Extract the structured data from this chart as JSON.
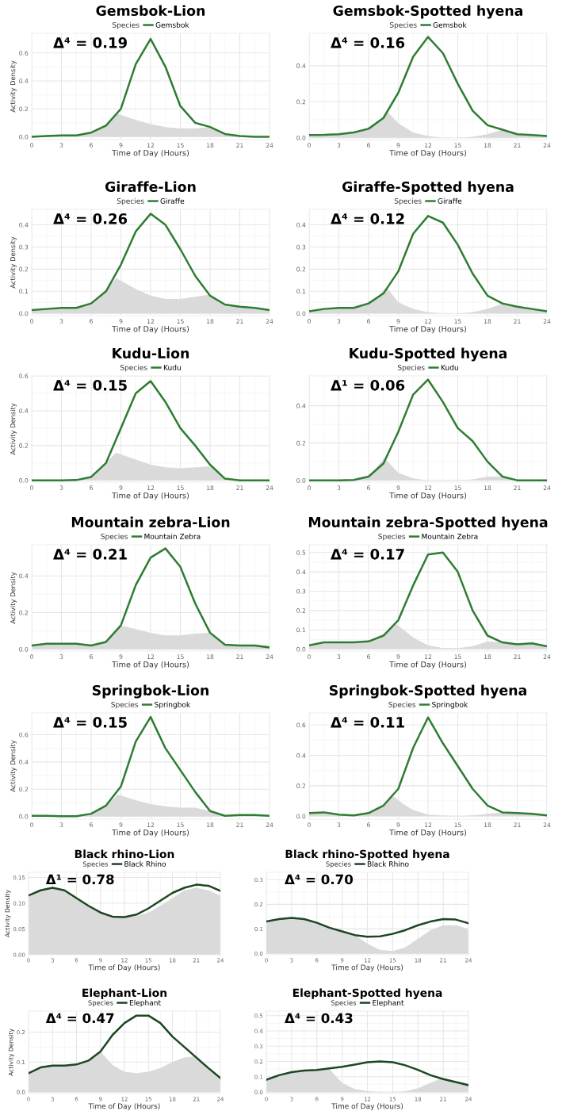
{
  "chart_data": [
    {
      "type": "line",
      "title": "Gemsbok-Lion",
      "legend_title": "Species",
      "legend": "top",
      "xlabel": "Time of Day (Hours)",
      "ylabel": "Activity Density",
      "annotations": [
        "Δ⁴ = 0.19"
      ],
      "grid": true,
      "xlim": [
        0,
        24
      ],
      "xticks": [
        0,
        3,
        6,
        9,
        12,
        15,
        18,
        21,
        24
      ],
      "ylim": [
        -0.02,
        0.74
      ],
      "yticks": [
        {
          "value": 0,
          "label": "0.0"
        },
        {
          "value": 0.2,
          "label": "0.2"
        },
        {
          "value": 0.4,
          "label": "0.4"
        },
        {
          "value": 0.6,
          "label": "0.6"
        }
      ],
      "x": [
        0,
        1.5,
        3,
        4.5,
        6,
        7.5,
        9,
        10.5,
        12,
        13.5,
        15,
        16.5,
        18,
        19.5,
        21,
        22.5,
        24
      ],
      "series": [
        {
          "type": "area",
          "color": "#dadada",
          "x": [
            0,
            1.5,
            3,
            4.5,
            6,
            7.5,
            8.7,
            10.5,
            12,
            13.5,
            15,
            16.5,
            18,
            19.5,
            21,
            22.5,
            24
          ],
          "values": [
            0,
            0.005,
            0.01,
            0.01,
            0.03,
            0.09,
            0.165,
            0.12,
            0.09,
            0.07,
            0.06,
            0.06,
            0.07,
            0.02,
            0.005,
            0,
            0
          ]
        },
        {
          "name": "Gemsbok",
          "color": "#2e7d32",
          "values": [
            0,
            0.005,
            0.01,
            0.01,
            0.03,
            0.08,
            0.2,
            0.52,
            0.7,
            0.5,
            0.22,
            0.1,
            0.07,
            0.02,
            0.005,
            0,
            0
          ]
        }
      ]
    },
    {
      "type": "line",
      "title": "Gemsbok-Spotted hyena",
      "legend_title": "Species",
      "legend": "top",
      "xlabel": "Time of Day (Hours)",
      "annotations": [
        "Δ⁴ = 0.16"
      ],
      "grid": true,
      "xlim": [
        0,
        24
      ],
      "xticks": [
        0,
        3,
        6,
        9,
        12,
        15,
        18,
        21,
        24
      ],
      "ylim": [
        -0.01,
        0.58
      ],
      "yticks": [
        {
          "value": 0,
          "label": "0.0"
        },
        {
          "value": 0.2,
          "label": "0.2"
        },
        {
          "value": 0.4,
          "label": "0.4"
        }
      ],
      "x": [
        0,
        1.5,
        3,
        4.5,
        6,
        7.5,
        9,
        10.5,
        12,
        13.5,
        15,
        16.5,
        18,
        19.5,
        21,
        22.5,
        24
      ],
      "series": [
        {
          "type": "area",
          "color": "#dadada",
          "x": [
            0,
            1.5,
            3,
            4.5,
            6,
            7,
            8,
            9,
            10.5,
            12,
            13.5,
            15,
            16.5,
            18,
            19.5,
            21,
            22.5,
            24
          ],
          "values": [
            0.015,
            0.016,
            0.02,
            0.03,
            0.05,
            0.09,
            0.14,
            0.08,
            0.03,
            0.01,
            0,
            0,
            0.005,
            0.02,
            0.045,
            0.02,
            0.015,
            0.01
          ]
        },
        {
          "name": "Gemsbok",
          "color": "#2e7d32",
          "values": [
            0.015,
            0.016,
            0.02,
            0.03,
            0.05,
            0.11,
            0.25,
            0.45,
            0.56,
            0.47,
            0.3,
            0.15,
            0.07,
            0.045,
            0.02,
            0.015,
            0.01
          ]
        }
      ]
    },
    {
      "type": "line",
      "title": "Giraffe-Lion",
      "legend_title": "Species",
      "legend": "top",
      "xlabel": "Time of Day (Hours)",
      "ylabel": "Activity Density",
      "annotations": [
        "Δ⁴ = 0.26"
      ],
      "grid": true,
      "xlim": [
        0,
        24
      ],
      "xticks": [
        0,
        3,
        6,
        9,
        12,
        15,
        18,
        21,
        24
      ],
      "ylim": [
        -0.01,
        0.47
      ],
      "yticks": [
        {
          "value": 0,
          "label": "0.0"
        },
        {
          "value": 0.1,
          "label": "0.1"
        },
        {
          "value": 0.2,
          "label": "0.2"
        },
        {
          "value": 0.3,
          "label": "0.3"
        },
        {
          "value": 0.4,
          "label": "0.4"
        }
      ],
      "x": [
        0,
        1.5,
        3,
        4.5,
        6,
        7.5,
        9,
        10.5,
        12,
        13.5,
        15,
        16.5,
        18,
        19.5,
        21,
        22.5,
        24
      ],
      "series": [
        {
          "type": "area",
          "color": "#dadada",
          "x": [
            0,
            1.5,
            3,
            4.5,
            6,
            7.5,
            8.5,
            10.5,
            12,
            13.5,
            15,
            16.5,
            18,
            19.5,
            21,
            22.5,
            24
          ],
          "values": [
            0.015,
            0.02,
            0.025,
            0.025,
            0.045,
            0.1,
            0.16,
            0.11,
            0.08,
            0.065,
            0.065,
            0.075,
            0.085,
            0.04,
            0.03,
            0.025,
            0.015
          ]
        },
        {
          "name": "Giraffe",
          "color": "#2e7d32",
          "values": [
            0.015,
            0.02,
            0.025,
            0.025,
            0.045,
            0.1,
            0.22,
            0.37,
            0.45,
            0.4,
            0.29,
            0.17,
            0.08,
            0.04,
            0.03,
            0.025,
            0.015
          ]
        }
      ]
    },
    {
      "type": "line",
      "title": "Giraffe-Spotted hyena",
      "legend_title": "Species",
      "legend": "top",
      "xlabel": "Time of Day (Hours)",
      "annotations": [
        "Δ⁴ = 0.12"
      ],
      "grid": true,
      "xlim": [
        0,
        24
      ],
      "xticks": [
        0,
        3,
        6,
        9,
        12,
        15,
        18,
        21,
        24
      ],
      "ylim": [
        -0.01,
        0.47
      ],
      "yticks": [
        {
          "value": 0,
          "label": "0.0"
        },
        {
          "value": 0.1,
          "label": "0.1"
        },
        {
          "value": 0.2,
          "label": "0.2"
        },
        {
          "value": 0.3,
          "label": "0.3"
        },
        {
          "value": 0.4,
          "label": "0.4"
        }
      ],
      "x": [
        0,
        1.5,
        3,
        4.5,
        6,
        7.5,
        9,
        10.5,
        12,
        13.5,
        15,
        16.5,
        18,
        19.5,
        21,
        22.5,
        24
      ],
      "series": [
        {
          "type": "area",
          "color": "#dadada",
          "x": [
            0,
            1.5,
            3,
            4.5,
            6,
            7,
            7.8,
            9,
            10.5,
            12,
            13.5,
            15,
            16.5,
            18,
            19.5,
            21,
            22.5,
            24
          ],
          "values": [
            0.01,
            0.02,
            0.025,
            0.025,
            0.045,
            0.08,
            0.12,
            0.05,
            0.02,
            0.005,
            0,
            0,
            0.005,
            0.02,
            0.045,
            0.03,
            0.02,
            0.01
          ]
        },
        {
          "name": "Giraffe",
          "color": "#2e7d32",
          "values": [
            0.01,
            0.02,
            0.025,
            0.025,
            0.045,
            0.09,
            0.19,
            0.36,
            0.44,
            0.41,
            0.31,
            0.18,
            0.08,
            0.045,
            0.03,
            0.02,
            0.01
          ]
        }
      ]
    },
    {
      "type": "line",
      "title": "Kudu-Lion",
      "legend_title": "Species",
      "legend": "top",
      "xlabel": "Time of Day (Hours)",
      "ylabel": "Activity Density",
      "annotations": [
        "Δ⁴ = 0.15"
      ],
      "grid": true,
      "xlim": [
        0,
        24
      ],
      "xticks": [
        0,
        3,
        6,
        9,
        12,
        15,
        18,
        21,
        24
      ],
      "ylim": [
        -0.01,
        0.6
      ],
      "yticks": [
        {
          "value": 0,
          "label": "0.0"
        },
        {
          "value": 0.2,
          "label": "0.2"
        },
        {
          "value": 0.4,
          "label": "0.4"
        },
        {
          "value": 0.6,
          "label": "0.6"
        }
      ],
      "x": [
        0,
        1.5,
        3,
        4.5,
        6,
        7.5,
        9,
        10.5,
        12,
        13.5,
        15,
        16.5,
        18,
        19.5,
        21,
        22.5,
        24
      ],
      "series": [
        {
          "type": "area",
          "color": "#dadada",
          "x": [
            0,
            1.5,
            3,
            4.5,
            6,
            7.5,
            8.5,
            10.5,
            12,
            13.5,
            15,
            16.5,
            18,
            19.5,
            21,
            22.5,
            24
          ],
          "values": [
            0,
            0,
            0,
            0.002,
            0.02,
            0.1,
            0.16,
            0.12,
            0.09,
            0.075,
            0.07,
            0.075,
            0.08,
            0.01,
            0,
            0,
            0
          ]
        },
        {
          "name": "Kudu",
          "color": "#2e7d32",
          "values": [
            0,
            0,
            0,
            0.002,
            0.02,
            0.1,
            0.3,
            0.5,
            0.57,
            0.45,
            0.3,
            0.2,
            0.09,
            0.01,
            0,
            0,
            0
          ]
        }
      ]
    },
    {
      "type": "line",
      "title": "Kudu-Spotted hyena",
      "legend_title": "Species",
      "legend": "top",
      "xlabel": "Time of Day (Hours)",
      "annotations": [
        "Δ¹ = 0.06"
      ],
      "grid": true,
      "xlim": [
        0,
        24
      ],
      "xticks": [
        0,
        3,
        6,
        9,
        12,
        15,
        18,
        21,
        24
      ],
      "ylim": [
        -0.01,
        0.56
      ],
      "yticks": [
        {
          "value": 0,
          "label": "0.0"
        },
        {
          "value": 0.2,
          "label": "0.2"
        },
        {
          "value": 0.4,
          "label": "0.4"
        }
      ],
      "x": [
        0,
        1.5,
        3,
        4.5,
        6,
        7.5,
        9,
        10.5,
        12,
        13.5,
        15,
        16.5,
        18,
        19.5,
        21,
        22.5,
        24
      ],
      "series": [
        {
          "type": "area",
          "color": "#dadada",
          "x": [
            0,
            1.5,
            3,
            4.5,
            6,
            7.6,
            9,
            10.5,
            12,
            13.5,
            15,
            16.5,
            18,
            19.5,
            21,
            22.5,
            24
          ],
          "values": [
            0,
            0,
            0,
            0.002,
            0.02,
            0.12,
            0.04,
            0.01,
            0,
            0,
            0,
            0.005,
            0.02,
            0.02,
            0,
            0,
            0
          ]
        },
        {
          "name": "Kudu",
          "color": "#2e7d32",
          "values": [
            0,
            0,
            0,
            0.002,
            0.02,
            0.09,
            0.26,
            0.46,
            0.54,
            0.42,
            0.28,
            0.21,
            0.1,
            0.02,
            0,
            0,
            0
          ]
        }
      ]
    },
    {
      "type": "line",
      "title": "Mountain zebra-Lion",
      "legend_title": "Species",
      "legend": "top",
      "xlabel": "Time of Day (Hours)",
      "ylabel": "Activity Density",
      "annotations": [
        "Δ⁴ = 0.21"
      ],
      "grid": true,
      "xlim": [
        0,
        24
      ],
      "xticks": [
        0,
        3,
        6,
        9,
        12,
        15,
        18,
        21,
        24
      ],
      "ylim": [
        -0.01,
        0.57
      ],
      "yticks": [
        {
          "value": 0,
          "label": "0.0"
        },
        {
          "value": 0.2,
          "label": "0.2"
        },
        {
          "value": 0.4,
          "label": "0.4"
        }
      ],
      "x": [
        0,
        1.5,
        3,
        4.5,
        6,
        7.5,
        9,
        10.5,
        12,
        13.5,
        15,
        16.5,
        18,
        19.5,
        21,
        22.5,
        24
      ],
      "series": [
        {
          "type": "area",
          "color": "#dadada",
          "values": [
            0.02,
            0.03,
            0.03,
            0.03,
            0.02,
            0.04,
            0.13,
            0.11,
            0.09,
            0.075,
            0.075,
            0.085,
            0.09,
            0.025,
            0.02,
            0.02,
            0.01
          ]
        },
        {
          "name": "Mountain Zebra",
          "color": "#2e7d32",
          "values": [
            0.02,
            0.03,
            0.03,
            0.03,
            0.02,
            0.04,
            0.13,
            0.35,
            0.5,
            0.55,
            0.45,
            0.25,
            0.09,
            0.025,
            0.02,
            0.02,
            0.01
          ]
        }
      ]
    },
    {
      "type": "line",
      "title": "Mountain zebra-Spotted hyena",
      "legend_title": "Species",
      "legend": "top",
      "xlabel": "Time of Day (Hours)",
      "annotations": [
        "Δ⁴ = 0.17"
      ],
      "grid": true,
      "xlim": [
        0,
        24
      ],
      "xticks": [
        0,
        3,
        6,
        9,
        12,
        15,
        18,
        21,
        24
      ],
      "ylim": [
        -0.01,
        0.54
      ],
      "yticks": [
        {
          "value": 0,
          "label": "0.0"
        },
        {
          "value": 0.1,
          "label": "0.1"
        },
        {
          "value": 0.2,
          "label": "0.2"
        },
        {
          "value": 0.3,
          "label": "0.3"
        },
        {
          "value": 0.4,
          "label": "0.4"
        },
        {
          "value": 0.5,
          "label": "0.5"
        }
      ],
      "x": [
        0,
        1.5,
        3,
        4.5,
        6,
        7.5,
        9,
        10.5,
        12,
        13.5,
        15,
        16.5,
        18,
        19.5,
        21,
        22.5,
        24
      ],
      "series": [
        {
          "type": "area",
          "color": "#dadada",
          "x": [
            0,
            1.5,
            3,
            4.5,
            6,
            7.5,
            8.8,
            10.5,
            12,
            13.5,
            15,
            16.5,
            18,
            19.5,
            21,
            22.5,
            24
          ],
          "values": [
            0.02,
            0.035,
            0.035,
            0.035,
            0.04,
            0.07,
            0.13,
            0.06,
            0.02,
            0.005,
            0.005,
            0.015,
            0.04,
            0.035,
            0.025,
            0.03,
            0.015
          ]
        },
        {
          "name": "Mountain Zebra",
          "color": "#2e7d32",
          "values": [
            0.02,
            0.035,
            0.035,
            0.035,
            0.04,
            0.07,
            0.15,
            0.33,
            0.49,
            0.5,
            0.4,
            0.2,
            0.07,
            0.035,
            0.025,
            0.03,
            0.015
          ]
        }
      ]
    },
    {
      "type": "line",
      "title": "Springbok-Lion",
      "legend_title": "Species",
      "legend": "top",
      "xlabel": "Time of Day (Hours)",
      "ylabel": "Activity Density",
      "annotations": [
        "Δ⁴ = 0.15"
      ],
      "grid": true,
      "xlim": [
        0,
        24
      ],
      "xticks": [
        0,
        3,
        6,
        9,
        12,
        15,
        18,
        21,
        24
      ],
      "ylim": [
        -0.02,
        0.76
      ],
      "yticks": [
        {
          "value": 0,
          "label": "0.0"
        },
        {
          "value": 0.2,
          "label": "0.2"
        },
        {
          "value": 0.4,
          "label": "0.4"
        },
        {
          "value": 0.6,
          "label": "0.6"
        }
      ],
      "x": [
        0,
        1.5,
        3,
        4.5,
        6,
        7.5,
        9,
        10.5,
        12,
        13.5,
        15,
        16.5,
        18,
        19.5,
        21,
        22.5,
        24
      ],
      "series": [
        {
          "type": "area",
          "color": "#dadada",
          "x": [
            0,
            1.5,
            3,
            4.5,
            6,
            7.5,
            8.7,
            10.5,
            12,
            13.5,
            15,
            16.5,
            18,
            19.5,
            21,
            22.5,
            24
          ],
          "values": [
            0.005,
            0.005,
            0.002,
            0.002,
            0.02,
            0.08,
            0.16,
            0.12,
            0.09,
            0.075,
            0.065,
            0.065,
            0.04,
            0.005,
            0.01,
            0.01,
            0.005
          ]
        },
        {
          "name": "Springbok",
          "color": "#2e7d32",
          "values": [
            0.005,
            0.005,
            0.002,
            0.002,
            0.02,
            0.08,
            0.22,
            0.55,
            0.73,
            0.5,
            0.34,
            0.18,
            0.04,
            0.005,
            0.01,
            0.01,
            0.005
          ]
        }
      ]
    },
    {
      "type": "line",
      "title": "Springbok-Spotted hyena",
      "legend_title": "Species",
      "legend": "top",
      "xlabel": "Time of Day (Hours)",
      "annotations": [
        "Δ⁴ = 0.11"
      ],
      "grid": true,
      "xlim": [
        0,
        24
      ],
      "xticks": [
        0,
        3,
        6,
        9,
        12,
        15,
        18,
        21,
        24
      ],
      "ylim": [
        -0.02,
        0.68
      ],
      "yticks": [
        {
          "value": 0,
          "label": "0.0"
        },
        {
          "value": 0.2,
          "label": "0.2"
        },
        {
          "value": 0.4,
          "label": "0.4"
        },
        {
          "value": 0.6,
          "label": "0.6"
        }
      ],
      "x": [
        0,
        1.5,
        3,
        4.5,
        6,
        7.5,
        9,
        10.5,
        12,
        13.5,
        15,
        16.5,
        18,
        19.5,
        21,
        22.5,
        24
      ],
      "series": [
        {
          "type": "area",
          "color": "#dadada",
          "x": [
            0,
            1.5,
            3,
            4.5,
            6,
            7.5,
            8.3,
            9.5,
            10.5,
            12,
            13.5,
            15,
            16.5,
            18,
            19.5,
            21,
            22.5,
            24
          ],
          "values": [
            0.02,
            0.025,
            0.01,
            0.005,
            0.02,
            0.07,
            0.14,
            0.08,
            0.04,
            0.01,
            0.003,
            0,
            0.005,
            0.015,
            0.025,
            0.02,
            0.015,
            0.005
          ]
        },
        {
          "name": "Springbok",
          "color": "#2e7d32",
          "values": [
            0.02,
            0.025,
            0.01,
            0.005,
            0.02,
            0.07,
            0.18,
            0.45,
            0.65,
            0.48,
            0.33,
            0.18,
            0.07,
            0.025,
            0.02,
            0.015,
            0.005
          ]
        }
      ]
    },
    {
      "type": "line",
      "title": "Black rhino-Lion",
      "legend_title": "Species",
      "legend": "top",
      "xlabel": "Time of Day (Hours)",
      "ylabel": "Activity Density",
      "annotations": [
        "Δ¹ = 0.78"
      ],
      "grid": true,
      "xlim": [
        0,
        24
      ],
      "xticks": [
        0,
        3,
        6,
        9,
        12,
        15,
        18,
        21,
        24
      ],
      "ylim": [
        0,
        0.16
      ],
      "yticks": [
        {
          "value": 0,
          "label": "0.00"
        },
        {
          "value": 0.05,
          "label": "0.05"
        },
        {
          "value": 0.1,
          "label": "0.10"
        },
        {
          "value": 0.15,
          "label": "0.15"
        }
      ],
      "x": [
        0,
        1.5,
        3,
        4.5,
        6,
        7.5,
        9,
        10.5,
        12,
        13.5,
        15,
        16.5,
        18,
        19.5,
        21,
        22.5,
        24
      ],
      "series": [
        {
          "type": "area",
          "color": "#dadada",
          "values": [
            0.115,
            0.125,
            0.13,
            0.125,
            0.11,
            0.095,
            0.082,
            0.074,
            0.073,
            0.075,
            0.082,
            0.095,
            0.11,
            0.125,
            0.13,
            0.125,
            0.115
          ]
        },
        {
          "name": "Black Rhino",
          "color": "#1e4620",
          "values": [
            0.115,
            0.125,
            0.13,
            0.125,
            0.11,
            0.095,
            0.082,
            0.074,
            0.073,
            0.078,
            0.09,
            0.105,
            0.12,
            0.13,
            0.136,
            0.134,
            0.124
          ]
        }
      ]
    },
    {
      "type": "line",
      "title": "Black rhino-Spotted hyena",
      "legend_title": "Species",
      "legend": "top",
      "xlabel": "Time of Day (Hours)",
      "annotations": [
        "Δ⁴ = 0.70"
      ],
      "grid": true,
      "xlim": [
        0,
        24
      ],
      "xticks": [
        0,
        3,
        6,
        9,
        12,
        15,
        18,
        21,
        24
      ],
      "ylim": [
        -0.005,
        0.33
      ],
      "yticks": [
        {
          "value": 0,
          "label": "0.0"
        },
        {
          "value": 0.1,
          "label": "0.1"
        },
        {
          "value": 0.2,
          "label": "0.2"
        },
        {
          "value": 0.3,
          "label": "0.3"
        }
      ],
      "x": [
        0,
        1.5,
        3,
        4.5,
        6,
        7.5,
        9,
        10.5,
        12,
        13.5,
        15,
        16.5,
        18,
        19.5,
        21,
        22.5,
        24
      ],
      "series": [
        {
          "type": "area",
          "color": "#dadada",
          "values": [
            0.13,
            0.14,
            0.145,
            0.14,
            0.125,
            0.105,
            0.09,
            0.075,
            0.04,
            0.015,
            0.01,
            0.025,
            0.06,
            0.095,
            0.115,
            0.115,
            0.1
          ]
        },
        {
          "name": "Black Rhino",
          "color": "#1e4620",
          "values": [
            0.13,
            0.14,
            0.145,
            0.14,
            0.125,
            0.105,
            0.09,
            0.075,
            0.068,
            0.07,
            0.08,
            0.095,
            0.115,
            0.13,
            0.14,
            0.138,
            0.123
          ]
        }
      ]
    },
    {
      "type": "line",
      "title": "Elephant-Lion",
      "legend_title": "Species",
      "legend": "top",
      "xlabel": "Time of Day (Hours)",
      "ylabel": "Activity Density",
      "annotations": [
        "Δ⁴ = 0.47"
      ],
      "grid": true,
      "xlim": [
        0,
        24
      ],
      "xticks": [
        0,
        3,
        6,
        9,
        12,
        15,
        18,
        21,
        24
      ],
      "ylim": [
        -0.005,
        0.27
      ],
      "yticks": [
        {
          "value": 0,
          "label": "0.0"
        },
        {
          "value": 0.1,
          "label": "0.1"
        },
        {
          "value": 0.2,
          "label": "0.2"
        }
      ],
      "x": [
        0,
        1.5,
        3,
        4.5,
        6,
        7.5,
        9,
        10.5,
        12,
        13.5,
        15,
        16.5,
        18,
        19.5,
        21,
        22.5,
        24
      ],
      "series": [
        {
          "type": "area",
          "color": "#dadada",
          "values": [
            0.063,
            0.082,
            0.088,
            0.088,
            0.092,
            0.105,
            0.135,
            0.09,
            0.068,
            0.063,
            0.068,
            0.08,
            0.1,
            0.115,
            0.12,
            0.08,
            0.047
          ]
        },
        {
          "name": "Elephant",
          "color": "#1e4620",
          "values": [
            0.063,
            0.082,
            0.088,
            0.088,
            0.092,
            0.105,
            0.135,
            0.19,
            0.23,
            0.255,
            0.255,
            0.23,
            0.185,
            0.15,
            0.115,
            0.08,
            0.047
          ]
        }
      ]
    },
    {
      "type": "line",
      "title": "Elephant-Spotted hyena",
      "legend_title": "Species",
      "legend": "top",
      "xlabel": "Time of Day (Hours)",
      "annotations": [
        "Δ⁴ = 0.43"
      ],
      "grid": true,
      "xlim": [
        0,
        24
      ],
      "xticks": [
        0,
        3,
        6,
        9,
        12,
        15,
        18,
        21,
        24
      ],
      "ylim": [
        -0.01,
        0.53
      ],
      "yticks": [
        {
          "value": 0,
          "label": "0.0"
        },
        {
          "value": 0.1,
          "label": "0.1"
        },
        {
          "value": 0.2,
          "label": "0.2"
        },
        {
          "value": 0.3,
          "label": "0.3"
        },
        {
          "value": 0.4,
          "label": "0.4"
        },
        {
          "value": 0.5,
          "label": "0.5"
        }
      ],
      "x": [
        0,
        1.5,
        3,
        4.5,
        6,
        7.5,
        9,
        10.5,
        12,
        13.5,
        15,
        16.5,
        18,
        19.5,
        21,
        22.5,
        24
      ],
      "series": [
        {
          "type": "area",
          "color": "#dadada",
          "values": [
            0.08,
            0.11,
            0.13,
            0.14,
            0.145,
            0.15,
            0.06,
            0.02,
            0.005,
            0,
            0,
            0.005,
            0.025,
            0.06,
            0.095,
            0.065,
            0.045
          ]
        },
        {
          "name": "Elephant",
          "color": "#1e4620",
          "values": [
            0.08,
            0.11,
            0.13,
            0.14,
            0.145,
            0.155,
            0.165,
            0.18,
            0.195,
            0.2,
            0.195,
            0.175,
            0.145,
            0.11,
            0.085,
            0.065,
            0.045
          ]
        }
      ]
    }
  ]
}
